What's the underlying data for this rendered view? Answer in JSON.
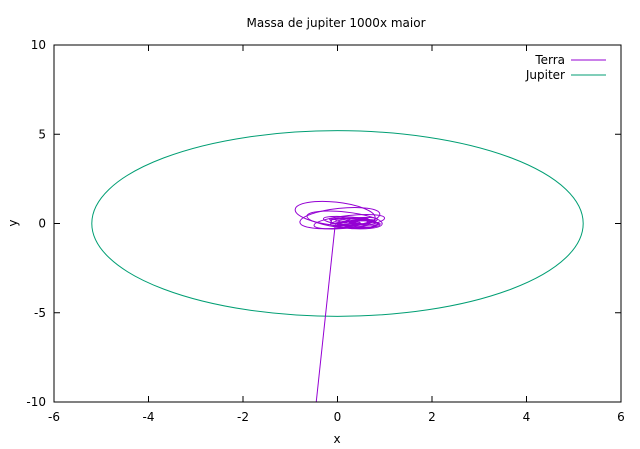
{
  "chart_data": {
    "type": "line",
    "title": "Massa de jupiter 1000x maior",
    "xlabel": "x",
    "ylabel": "y",
    "xlim": [
      -6,
      6
    ],
    "ylim": [
      -10,
      10
    ],
    "xticks": [
      "-6",
      "-4",
      "-2",
      "0",
      "2",
      "4",
      "6"
    ],
    "yticks": [
      "10",
      "5",
      "0",
      "-5",
      "-10"
    ],
    "xtick_values": [
      -6,
      -4,
      -2,
      0,
      2,
      4,
      6
    ],
    "ytick_values": [
      10,
      5,
      0,
      -5,
      -10
    ],
    "grid": false,
    "legend_position": "top-right",
    "series": [
      {
        "name": "Terra",
        "color": "#9400d3",
        "shape": "tangled orbit loops near origin with escape trail",
        "loops": [
          {
            "cx": -0.05,
            "cy": 0.55,
            "rx": 0.85,
            "ry": 0.65
          },
          {
            "cx": 0.05,
            "cy": 0.3,
            "rx": 0.85,
            "ry": 0.55
          },
          {
            "cx": 0.15,
            "cy": 0.2,
            "rx": 0.8,
            "ry": 0.45
          },
          {
            "cx": 0.25,
            "cy": 0.1,
            "rx": 0.75,
            "ry": 0.35
          },
          {
            "cx": 0.3,
            "cy": 0.1,
            "rx": 0.6,
            "ry": 0.25
          },
          {
            "cx": 0.35,
            "cy": 0.1,
            "rx": 0.5,
            "ry": 0.2
          },
          {
            "cx": 0.4,
            "cy": 0.1,
            "rx": 0.45,
            "ry": 0.15
          },
          {
            "cx": 0.4,
            "cy": 0.05,
            "rx": 0.4,
            "ry": 0.12
          }
        ],
        "trail": [
          {
            "x": -0.05,
            "y": -0.1
          },
          {
            "x": -0.45,
            "y": -10
          }
        ]
      },
      {
        "name": "Jupiter",
        "color": "#009e73",
        "shape": "ellipse",
        "cx": 0,
        "cy": 0,
        "rx": 5.2,
        "ry": 5.2
      }
    ]
  }
}
